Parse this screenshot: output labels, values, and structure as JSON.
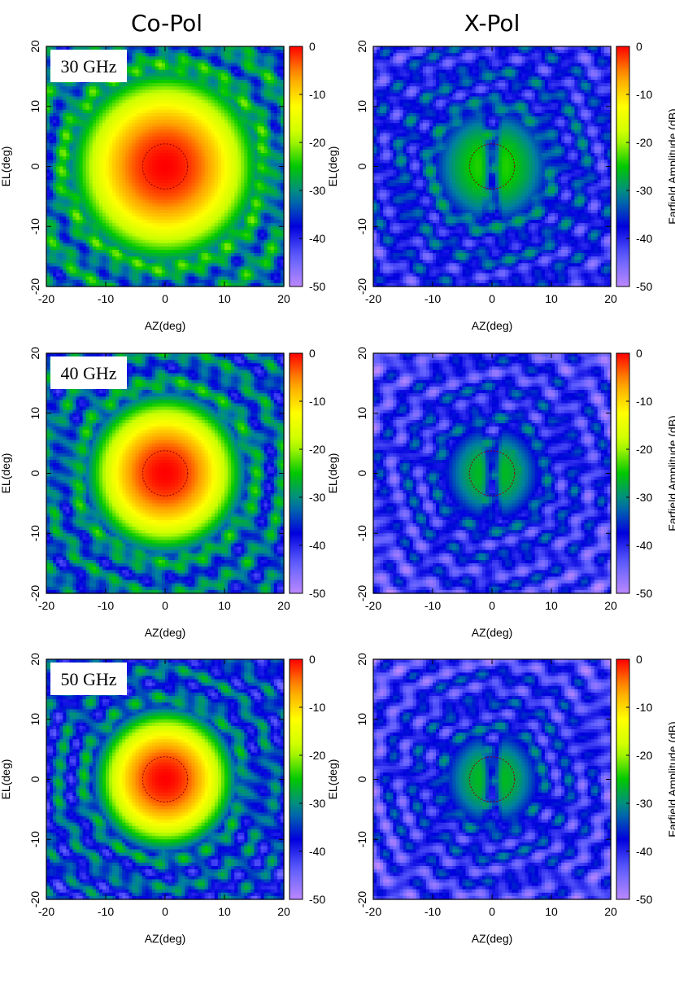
{
  "column_titles": [
    "Co-Pol",
    "X-Pol"
  ],
  "colors": {
    "floor": "#BC88FF",
    "colormap": [
      "#BC88FF",
      "#6060FF",
      "#0000DD",
      "#0080A0",
      "#00C800",
      "#C8FF00",
      "#FFFF00",
      "#FFA000",
      "#FF0000"
    ]
  },
  "chart_data": [
    {
      "type": "heatmap",
      "panel": "Co-Pol",
      "row_label": "30 GHz",
      "xlabel": "AZ(deg)",
      "ylabel": "EL(deg)",
      "xlim": [
        -20,
        20
      ],
      "ylim": [
        -20,
        20
      ],
      "xticks": [
        "-20",
        "-10",
        "0",
        "10",
        "20"
      ],
      "yticks": [
        "-20",
        "-10",
        "0",
        "10",
        "20"
      ],
      "colorbar": {
        "label": "",
        "ticks": [
          "0",
          "-10",
          "-20",
          "-30",
          "-40",
          "-50"
        ],
        "range": [
          -50,
          0
        ]
      },
      "peak_db": 0,
      "beam_width_deg": 11,
      "sidelobe_db": -32
    },
    {
      "type": "heatmap",
      "panel": "X-Pol",
      "row_label": "",
      "xlabel": "AZ(deg)",
      "ylabel": "EL(deg)",
      "xlim": [
        -20,
        20
      ],
      "ylim": [
        -20,
        20
      ],
      "xticks": [
        "-20",
        "-10",
        "0",
        "10",
        "20"
      ],
      "yticks": [
        "-20",
        "-10",
        "0",
        "10",
        "20"
      ],
      "colorbar": {
        "label": "Farfield Amplitude (dB)",
        "ticks": [
          "0",
          "-10",
          "-20",
          "-30",
          "-40",
          "-50"
        ],
        "range": [
          -50,
          0
        ]
      },
      "peak_db": -23,
      "beam_width_deg": 7,
      "sidelobe_db": -38
    },
    {
      "type": "heatmap",
      "panel": "Co-Pol",
      "row_label": "40 GHz",
      "xlabel": "AZ(deg)",
      "ylabel": "EL(deg)",
      "xlim": [
        -20,
        20
      ],
      "ylim": [
        -20,
        20
      ],
      "xticks": [
        "-20",
        "-10",
        "0",
        "10",
        "20"
      ],
      "yticks": [
        "-20",
        "-10",
        "0",
        "10",
        "20"
      ],
      "colorbar": {
        "label": "",
        "ticks": [
          "0",
          "-10",
          "-20",
          "-30",
          "-40",
          "-50"
        ],
        "range": [
          -50,
          0
        ]
      },
      "peak_db": 0,
      "beam_width_deg": 9,
      "sidelobe_db": -34
    },
    {
      "type": "heatmap",
      "panel": "X-Pol",
      "row_label": "",
      "xlabel": "AZ(deg)",
      "ylabel": "EL(deg)",
      "xlim": [
        -20,
        20
      ],
      "ylim": [
        -20,
        20
      ],
      "xticks": [
        "-20",
        "-10",
        "0",
        "10",
        "20"
      ],
      "yticks": [
        "-20",
        "-10",
        "0",
        "10",
        "20"
      ],
      "colorbar": {
        "label": "Farfield Amplitude (dB)",
        "ticks": [
          "0",
          "-10",
          "-20",
          "-30",
          "-40",
          "-50"
        ],
        "range": [
          -50,
          0
        ]
      },
      "peak_db": -25,
      "beam_width_deg": 6,
      "sidelobe_db": -40
    },
    {
      "type": "heatmap",
      "panel": "Co-Pol",
      "row_label": "50 GHz",
      "xlabel": "AZ(deg)",
      "ylabel": "EL(deg)",
      "xlim": [
        -20,
        20
      ],
      "ylim": [
        -20,
        20
      ],
      "xticks": [
        "-20",
        "-10",
        "0",
        "10",
        "20"
      ],
      "yticks": [
        "-20",
        "-10",
        "0",
        "10",
        "20"
      ],
      "colorbar": {
        "label": "",
        "ticks": [
          "0",
          "-10",
          "-20",
          "-30",
          "-40",
          "-50"
        ],
        "range": [
          -50,
          0
        ]
      },
      "peak_db": 0,
      "beam_width_deg": 8,
      "sidelobe_db": -36
    },
    {
      "type": "heatmap",
      "panel": "X-Pol",
      "row_label": "",
      "xlabel": "AZ(deg)",
      "ylabel": "EL(deg)",
      "xlim": [
        -20,
        20
      ],
      "ylim": [
        -20,
        20
      ],
      "xticks": [
        "-20",
        "-10",
        "0",
        "10",
        "20"
      ],
      "yticks": [
        "-20",
        "-10",
        "0",
        "10",
        "20"
      ],
      "colorbar": {
        "label": "Farfield Amplitude (dB)",
        "ticks": [
          "0",
          "-10",
          "-20",
          "-30",
          "-40",
          "-50"
        ],
        "range": [
          -50,
          0
        ]
      },
      "peak_db": -25,
      "beam_width_deg": 6,
      "sidelobe_db": -40
    }
  ]
}
